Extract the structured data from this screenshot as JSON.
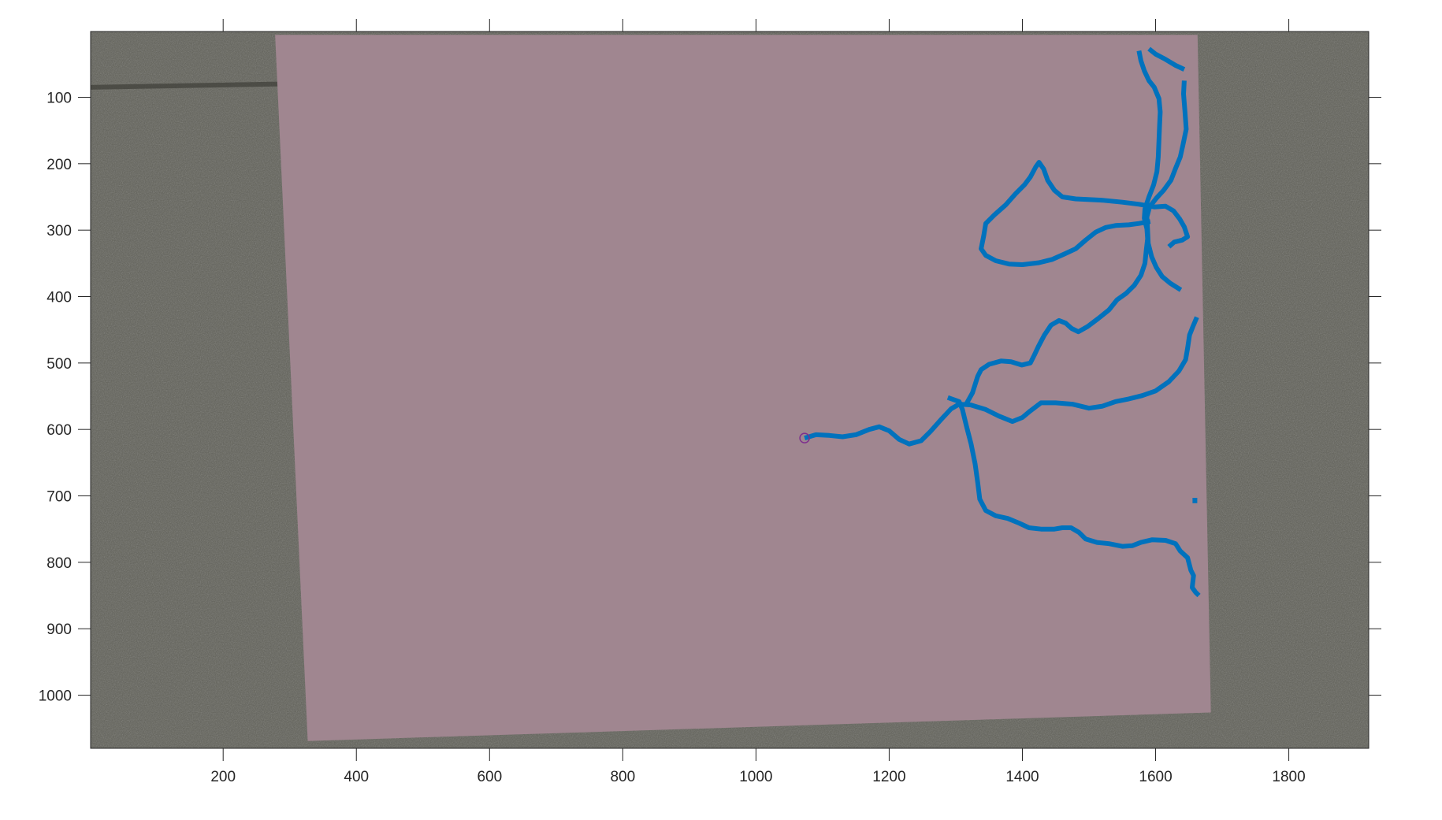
{
  "chart_data": {
    "type": "line",
    "title": "",
    "xlabel": "",
    "ylabel": "",
    "xlim": [
      1,
      1920
    ],
    "ylim": [
      1080,
      1
    ],
    "y_reversed": true,
    "xticks": [
      200,
      400,
      600,
      800,
      1000,
      1200,
      1400,
      1600,
      1800
    ],
    "yticks": [
      100,
      200,
      300,
      400,
      500,
      600,
      700,
      800,
      900,
      1000
    ],
    "grid": false,
    "legend": "none",
    "colors": {
      "background_photo": "#5f5f57",
      "paper_sheet": "#a08690",
      "trace": "#0072bd",
      "origin_marker": "#7e2f8e",
      "axes": "#262626"
    },
    "paper_corners": [
      [
        278,
        6
      ],
      [
        1663,
        6
      ],
      [
        1683,
        1026
      ],
      [
        327,
        1069
      ]
    ],
    "origin_marker": {
      "x": 1073,
      "y": 613
    },
    "series": [
      {
        "points": [
          [
            1073,
            613
          ],
          [
            1090,
            608
          ],
          [
            1110,
            609
          ],
          [
            1130,
            611
          ],
          [
            1150,
            608
          ],
          [
            1170,
            600
          ],
          [
            1185,
            596
          ],
          [
            1200,
            602
          ],
          [
            1215,
            615
          ],
          [
            1230,
            622
          ],
          [
            1248,
            617
          ],
          [
            1262,
            603
          ],
          [
            1278,
            585
          ],
          [
            1293,
            569
          ],
          [
            1305,
            562
          ],
          [
            1322,
            563
          ],
          [
            1345,
            570
          ],
          [
            1365,
            580
          ],
          [
            1385,
            588
          ],
          [
            1400,
            582
          ],
          [
            1412,
            572
          ],
          [
            1428,
            560
          ],
          [
            1450,
            560
          ],
          [
            1475,
            562
          ],
          [
            1500,
            568
          ],
          [
            1520,
            565
          ],
          [
            1540,
            558
          ],
          [
            1560,
            554
          ],
          [
            1580,
            549
          ],
          [
            1600,
            542
          ],
          [
            1620,
            528
          ],
          [
            1635,
            512
          ],
          [
            1645,
            495
          ],
          [
            1648,
            478
          ],
          [
            1651,
            458
          ],
          [
            1656,
            445
          ],
          [
            1662,
            431
          ]
        ]
      },
      {
        "points": [
          [
            1288,
            552
          ],
          [
            1305,
            558
          ],
          [
            1310,
            570
          ],
          [
            1316,
            595
          ],
          [
            1323,
            622
          ],
          [
            1329,
            652
          ],
          [
            1333,
            680
          ],
          [
            1336,
            705
          ],
          [
            1345,
            722
          ],
          [
            1360,
            730
          ],
          [
            1378,
            734
          ],
          [
            1395,
            741
          ],
          [
            1410,
            748
          ],
          [
            1428,
            750
          ],
          [
            1448,
            750
          ],
          [
            1460,
            748
          ],
          [
            1473,
            748
          ],
          [
            1485,
            755
          ],
          [
            1495,
            765
          ],
          [
            1512,
            770
          ],
          [
            1530,
            772
          ],
          [
            1550,
            776
          ],
          [
            1565,
            775
          ],
          [
            1578,
            770
          ],
          [
            1595,
            766
          ],
          [
            1615,
            767
          ],
          [
            1630,
            772
          ],
          [
            1637,
            783
          ],
          [
            1648,
            793
          ],
          [
            1653,
            812
          ],
          [
            1657,
            820
          ],
          [
            1655,
            838
          ],
          [
            1660,
            845
          ],
          [
            1665,
            850
          ]
        ]
      },
      {
        "points": [
          [
            1315,
            563
          ],
          [
            1325,
            545
          ],
          [
            1333,
            520
          ],
          [
            1338,
            510
          ],
          [
            1350,
            502
          ],
          [
            1368,
            497
          ],
          [
            1383,
            498
          ],
          [
            1399,
            503
          ],
          [
            1412,
            500
          ],
          [
            1418,
            488
          ],
          [
            1424,
            475
          ],
          [
            1433,
            458
          ],
          [
            1443,
            443
          ],
          [
            1455,
            436
          ],
          [
            1465,
            440
          ],
          [
            1474,
            448
          ],
          [
            1484,
            453
          ],
          [
            1498,
            445
          ],
          [
            1514,
            433
          ],
          [
            1530,
            420
          ],
          [
            1542,
            405
          ],
          [
            1556,
            395
          ],
          [
            1568,
            383
          ],
          [
            1578,
            368
          ],
          [
            1584,
            350
          ],
          [
            1586,
            330
          ],
          [
            1588,
            313
          ],
          [
            1587,
            298
          ],
          [
            1583,
            282
          ],
          [
            1584,
            268
          ],
          [
            1590,
            250
          ],
          [
            1597,
            232
          ],
          [
            1602,
            212
          ],
          [
            1604,
            190
          ],
          [
            1605,
            165
          ],
          [
            1606,
            142
          ],
          [
            1607,
            122
          ],
          [
            1605,
            102
          ],
          [
            1598,
            85
          ],
          [
            1590,
            75
          ],
          [
            1583,
            60
          ],
          [
            1578,
            45
          ],
          [
            1575,
            30
          ]
        ]
      },
      {
        "points": [
          [
            1590,
            27
          ],
          [
            1600,
            35
          ],
          [
            1615,
            43
          ],
          [
            1630,
            52
          ],
          [
            1643,
            58
          ]
        ]
      },
      {
        "points": [
          [
            1643,
            75
          ],
          [
            1642,
            95
          ],
          [
            1644,
            120
          ],
          [
            1646,
            148
          ],
          [
            1641,
            172
          ],
          [
            1637,
            190
          ],
          [
            1630,
            207
          ],
          [
            1623,
            225
          ],
          [
            1612,
            240
          ],
          [
            1601,
            252
          ],
          [
            1591,
            265
          ],
          [
            1587,
            280
          ],
          [
            1588,
            300
          ],
          [
            1589,
            320
          ],
          [
            1594,
            340
          ],
          [
            1601,
            356
          ],
          [
            1610,
            370
          ],
          [
            1622,
            380
          ],
          [
            1638,
            390
          ]
        ]
      },
      {
        "points": [
          [
            1592,
            287
          ],
          [
            1575,
            290
          ],
          [
            1560,
            292
          ],
          [
            1540,
            293
          ],
          [
            1525,
            296
          ],
          [
            1510,
            303
          ],
          [
            1495,
            315
          ],
          [
            1480,
            328
          ],
          [
            1463,
            336
          ],
          [
            1445,
            344
          ],
          [
            1425,
            349
          ],
          [
            1400,
            352
          ],
          [
            1380,
            351
          ],
          [
            1360,
            346
          ],
          [
            1345,
            338
          ],
          [
            1338,
            328
          ],
          [
            1342,
            308
          ],
          [
            1345,
            290
          ],
          [
            1358,
            277
          ],
          [
            1375,
            262
          ],
          [
            1390,
            245
          ],
          [
            1403,
            232
          ],
          [
            1412,
            220
          ],
          [
            1420,
            205
          ],
          [
            1425,
            198
          ],
          [
            1432,
            208
          ],
          [
            1438,
            225
          ],
          [
            1448,
            240
          ],
          [
            1460,
            250
          ],
          [
            1480,
            253
          ],
          [
            1520,
            255
          ],
          [
            1550,
            258
          ],
          [
            1575,
            261
          ],
          [
            1598,
            265
          ],
          [
            1615,
            264
          ],
          [
            1627,
            271
          ],
          [
            1636,
            283
          ],
          [
            1643,
            295
          ],
          [
            1648,
            310
          ],
          [
            1640,
            315
          ],
          [
            1628,
            318
          ],
          [
            1620,
            325
          ]
        ]
      },
      {
        "points": [
          [
            1659,
            711
          ],
          [
            1659,
            703
          ]
        ]
      }
    ]
  }
}
